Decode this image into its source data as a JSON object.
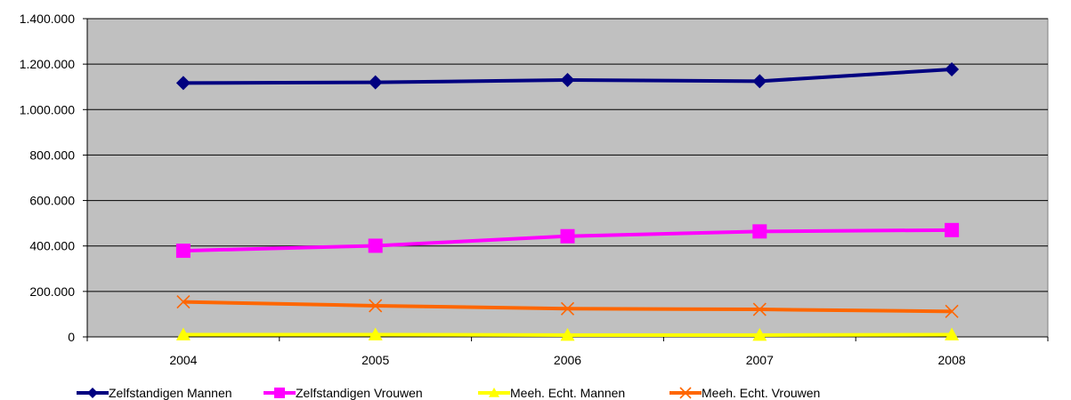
{
  "chart_data": {
    "type": "line",
    "title": "",
    "xlabel": "",
    "ylabel": "",
    "categories": [
      "2004",
      "2005",
      "2006",
      "2007",
      "2008"
    ],
    "ylim": [
      0,
      1400000
    ],
    "yticks": [
      0,
      200000,
      400000,
      600000,
      800000,
      1000000,
      1200000,
      1400000
    ],
    "ytick_labels": [
      "0",
      "200.000",
      "400.000",
      "600.000",
      "800.000",
      "1.000.000",
      "1.200.000",
      "1.400.000"
    ],
    "grid": true,
    "plot_background": "#c0c0c0",
    "legend_position": "bottom",
    "series": [
      {
        "name": "Zelfstandigen Mannen",
        "color": "#000080",
        "marker": "diamond",
        "values": [
          1117000,
          1120000,
          1130000,
          1125000,
          1177000
        ]
      },
      {
        "name": "Zelfstandigen Vrouwen",
        "color": "#ff00ff",
        "marker": "square",
        "values": [
          379000,
          401000,
          443000,
          464000,
          470000
        ]
      },
      {
        "name": "Meeh. Echt. Mannen",
        "color": "#ffff00",
        "marker": "triangle",
        "values": [
          10000,
          10000,
          8000,
          8000,
          10000
        ]
      },
      {
        "name": "Meeh. Echt. Vrouwen",
        "color": "#ff6600",
        "marker": "x",
        "values": [
          154000,
          137000,
          124000,
          121000,
          112000
        ]
      }
    ]
  }
}
